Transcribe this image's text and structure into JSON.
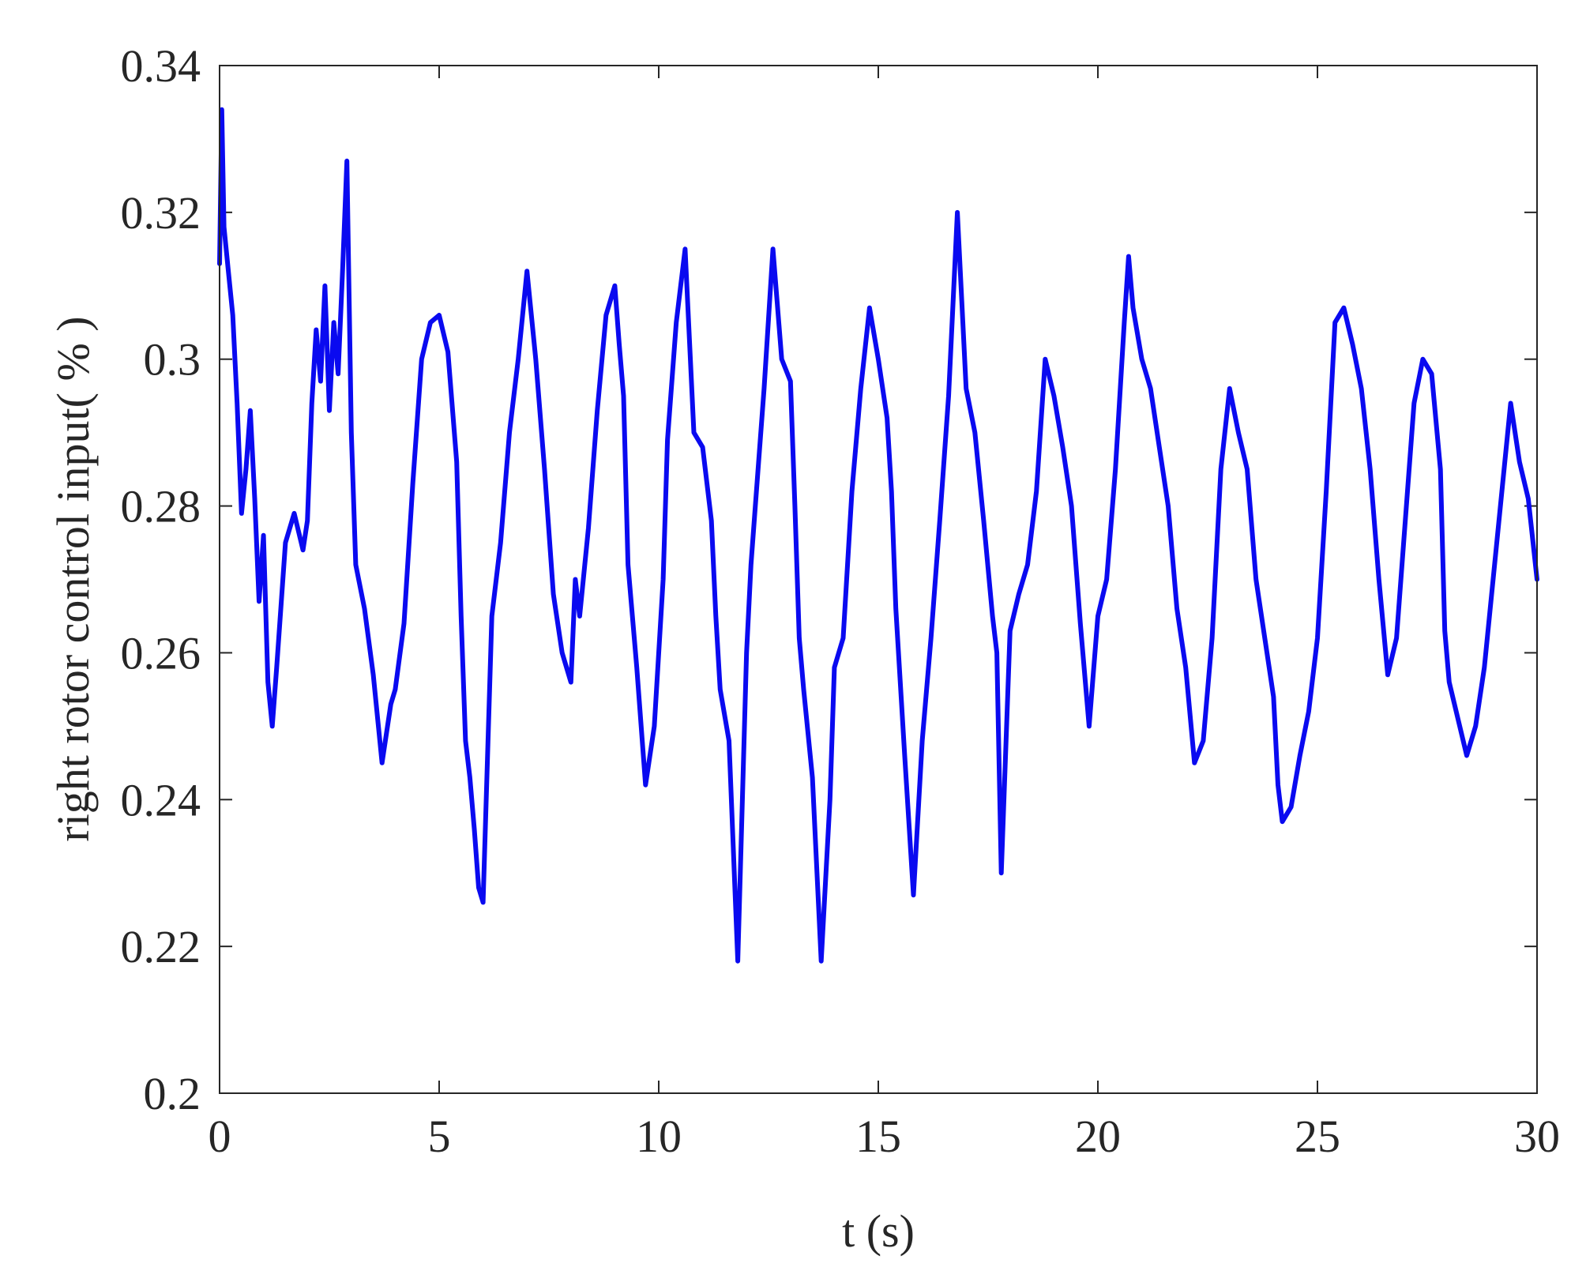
{
  "chart_data": {
    "type": "line",
    "title": "",
    "xlabel": "t (s)",
    "ylabel": "right rotor control input( % )",
    "xlim": [
      0,
      30
    ],
    "ylim": [
      0.2,
      0.34
    ],
    "x_ticks": [
      0,
      5,
      10,
      15,
      20,
      25,
      30
    ],
    "y_ticks": [
      0.2,
      0.22,
      0.24,
      0.26,
      0.28,
      0.3,
      0.32,
      0.34
    ],
    "x_tick_labels": [
      "0",
      "5",
      "10",
      "15",
      "20",
      "25",
      "30"
    ],
    "y_tick_labels": [
      "0.2",
      "0.22",
      "0.24",
      "0.26",
      "0.28",
      "0.3",
      "0.32",
      "0.34"
    ],
    "grid": false,
    "line_color": "#0a0af0",
    "series": [
      {
        "x": [
          0,
          0.05,
          0.1,
          0.2,
          0.3,
          0.4,
          0.5,
          0.6,
          0.7,
          0.8,
          0.9,
          1.0,
          1.1,
          1.2,
          1.3,
          1.5,
          1.7,
          1.9,
          2.0,
          2.1,
          2.2,
          2.3,
          2.4,
          2.5,
          2.6,
          2.7,
          2.8,
          2.9,
          3.0,
          3.1,
          3.3,
          3.5,
          3.7,
          3.9,
          4.0,
          4.2,
          4.4,
          4.6,
          4.8,
          5.0,
          5.2,
          5.4,
          5.5,
          5.6,
          5.7,
          5.8,
          5.9,
          6.0,
          6.2,
          6.4,
          6.6,
          6.8,
          7.0,
          7.2,
          7.4,
          7.6,
          7.8,
          8.0,
          8.1,
          8.2,
          8.4,
          8.6,
          8.8,
          9.0,
          9.1,
          9.2,
          9.3,
          9.5,
          9.7,
          9.9,
          10.1,
          10.2,
          10.4,
          10.6,
          10.8,
          11.0,
          11.2,
          11.3,
          11.4,
          11.6,
          11.8,
          12.0,
          12.1,
          12.2,
          12.4,
          12.6,
          12.8,
          13.0,
          13.1,
          13.2,
          13.3,
          13.5,
          13.7,
          13.9,
          14.0,
          14.2,
          14.4,
          14.6,
          14.8,
          15.0,
          15.2,
          15.3,
          15.4,
          15.6,
          15.8,
          16.0,
          16.2,
          16.4,
          16.6,
          16.8,
          17.0,
          17.2,
          17.4,
          17.6,
          17.7,
          17.8,
          18.0,
          18.2,
          18.4,
          18.6,
          18.8,
          19.0,
          19.2,
          19.4,
          19.6,
          19.8,
          20.0,
          20.2,
          20.4,
          20.6,
          20.7,
          20.8,
          21.0,
          21.2,
          21.4,
          21.6,
          21.8,
          22.0,
          22.2,
          22.4,
          22.6,
          22.8,
          23.0,
          23.2,
          23.4,
          23.6,
          23.8,
          24.0,
          24.1,
          24.2,
          24.4,
          24.6,
          24.8,
          25.0,
          25.2,
          25.4,
          25.6,
          25.8,
          26.0,
          26.2,
          26.4,
          26.6,
          26.8,
          27.0,
          27.2,
          27.4,
          27.6,
          27.8,
          27.9,
          28.0,
          28.2,
          28.4,
          28.6,
          28.8,
          29.0,
          29.2,
          29.4,
          29.6,
          29.8,
          30.0
        ],
        "y": [
          0.313,
          0.334,
          0.318,
          0.312,
          0.306,
          0.294,
          0.279,
          0.285,
          0.293,
          0.281,
          0.267,
          0.276,
          0.256,
          0.25,
          0.258,
          0.275,
          0.279,
          0.274,
          0.278,
          0.294,
          0.304,
          0.297,
          0.31,
          0.293,
          0.305,
          0.298,
          0.312,
          0.327,
          0.29,
          0.272,
          0.266,
          0.257,
          0.245,
          0.253,
          0.255,
          0.264,
          0.283,
          0.3,
          0.305,
          0.306,
          0.301,
          0.286,
          0.265,
          0.248,
          0.243,
          0.236,
          0.228,
          0.226,
          0.265,
          0.275,
          0.29,
          0.3,
          0.312,
          0.3,
          0.285,
          0.268,
          0.26,
          0.256,
          0.27,
          0.265,
          0.277,
          0.293,
          0.306,
          0.31,
          0.302,
          0.295,
          0.272,
          0.258,
          0.242,
          0.25,
          0.27,
          0.289,
          0.305,
          0.315,
          0.29,
          0.288,
          0.278,
          0.265,
          0.255,
          0.248,
          0.218,
          0.26,
          0.272,
          0.28,
          0.296,
          0.315,
          0.3,
          0.297,
          0.28,
          0.262,
          0.255,
          0.243,
          0.218,
          0.24,
          0.258,
          0.262,
          0.282,
          0.296,
          0.307,
          0.3,
          0.292,
          0.282,
          0.266,
          0.246,
          0.227,
          0.248,
          0.262,
          0.278,
          0.295,
          0.32,
          0.296,
          0.29,
          0.278,
          0.265,
          0.26,
          0.23,
          0.263,
          0.268,
          0.272,
          0.282,
          0.3,
          0.295,
          0.288,
          0.28,
          0.264,
          0.25,
          0.265,
          0.27,
          0.285,
          0.305,
          0.314,
          0.307,
          0.3,
          0.296,
          0.288,
          0.28,
          0.266,
          0.258,
          0.245,
          0.248,
          0.262,
          0.285,
          0.296,
          0.29,
          0.285,
          0.27,
          0.262,
          0.254,
          0.242,
          0.237,
          0.239,
          0.246,
          0.252,
          0.262,
          0.282,
          0.305,
          0.307,
          0.302,
          0.296,
          0.285,
          0.27,
          0.257,
          0.262,
          0.278,
          0.294,
          0.3,
          0.298,
          0.285,
          0.263,
          0.256,
          0.251,
          0.246,
          0.25,
          0.258,
          0.27,
          0.282,
          0.294,
          0.286,
          0.281,
          0.27
        ]
      }
    ]
  }
}
